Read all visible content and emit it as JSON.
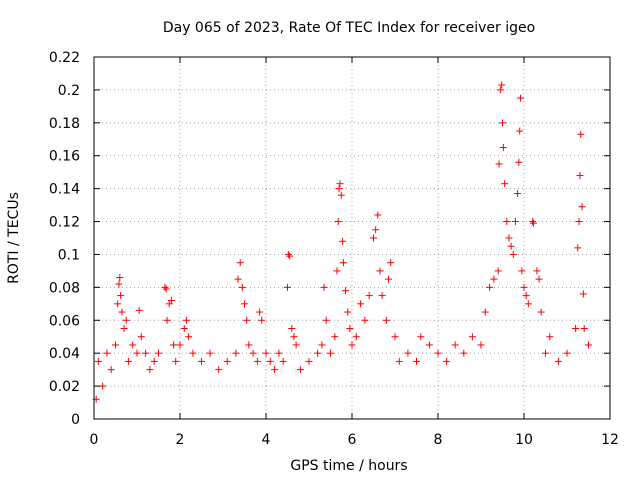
{
  "chart_data": {
    "type": "scatter",
    "title": "Day 065 of 2023, Rate Of TEC Index for receiver igeo",
    "xlabel": "GPS time / hours",
    "ylabel": "ROTI / TECUs",
    "xlim": [
      0,
      12
    ],
    "ylim": [
      0,
      0.22
    ],
    "x_ticks": [
      0,
      2,
      4,
      6,
      8,
      10,
      12
    ],
    "x_tick_labels": [
      "0",
      "2",
      "4",
      "6",
      "8",
      "10",
      "12"
    ],
    "y_ticks": [
      0,
      0.02,
      0.04,
      0.06,
      0.08,
      0.1,
      0.12,
      0.14,
      0.16,
      0.18,
      0.2,
      0.22
    ],
    "y_tick_labels": [
      "0",
      "0.02",
      "0.04",
      "0.06",
      "0.08",
      "0.1",
      "0.12",
      "0.14",
      "0.16",
      "0.18",
      "0.2",
      "0.22"
    ],
    "grid": true,
    "marker": "+",
    "series_color": "#ff0000",
    "series": [
      {
        "name": "ROTI",
        "points": [
          [
            0.05,
            0.012
          ],
          [
            0.1,
            0.035
          ],
          [
            0.2,
            0.02
          ],
          [
            0.3,
            0.04
          ],
          [
            0.4,
            0.03
          ],
          [
            0.5,
            0.045
          ],
          [
            0.55,
            0.07
          ],
          [
            0.58,
            0.082
          ],
          [
            0.6,
            0.086
          ],
          [
            0.62,
            0.075
          ],
          [
            0.65,
            0.065
          ],
          [
            0.7,
            0.055
          ],
          [
            0.75,
            0.06
          ],
          [
            0.8,
            0.035
          ],
          [
            0.9,
            0.045
          ],
          [
            1.0,
            0.04
          ],
          [
            1.05,
            0.066
          ],
          [
            1.1,
            0.05
          ],
          [
            1.2,
            0.04
          ],
          [
            1.3,
            0.03
          ],
          [
            1.4,
            0.035
          ],
          [
            1.5,
            0.04
          ],
          [
            1.65,
            0.08
          ],
          [
            1.68,
            0.079
          ],
          [
            1.7,
            0.06
          ],
          [
            1.75,
            0.07
          ],
          [
            1.8,
            0.072
          ],
          [
            1.85,
            0.045
          ],
          [
            1.9,
            0.035
          ],
          [
            2.0,
            0.045
          ],
          [
            2.1,
            0.055
          ],
          [
            2.15,
            0.06
          ],
          [
            2.2,
            0.05
          ],
          [
            2.3,
            0.04
          ],
          [
            2.5,
            0.035
          ],
          [
            2.7,
            0.04
          ],
          [
            2.9,
            0.03
          ],
          [
            3.1,
            0.035
          ],
          [
            3.3,
            0.04
          ],
          [
            3.35,
            0.085
          ],
          [
            3.4,
            0.095
          ],
          [
            3.45,
            0.08
          ],
          [
            3.5,
            0.07
          ],
          [
            3.55,
            0.06
          ],
          [
            3.6,
            0.045
          ],
          [
            3.7,
            0.04
          ],
          [
            3.8,
            0.035
          ],
          [
            3.85,
            0.065
          ],
          [
            3.9,
            0.06
          ],
          [
            4.0,
            0.04
          ],
          [
            4.1,
            0.035
          ],
          [
            4.2,
            0.03
          ],
          [
            4.3,
            0.04
          ],
          [
            4.4,
            0.035
          ],
          [
            4.5,
            0.08
          ],
          [
            4.52,
            0.1
          ],
          [
            4.55,
            0.099
          ],
          [
            4.6,
            0.055
          ],
          [
            4.65,
            0.05
          ],
          [
            4.7,
            0.045
          ],
          [
            4.8,
            0.03
          ],
          [
            5.0,
            0.035
          ],
          [
            5.2,
            0.04
          ],
          [
            5.3,
            0.045
          ],
          [
            5.35,
            0.08
          ],
          [
            5.4,
            0.06
          ],
          [
            5.5,
            0.04
          ],
          [
            5.6,
            0.05
          ],
          [
            5.65,
            0.09
          ],
          [
            5.68,
            0.12
          ],
          [
            5.7,
            0.14
          ],
          [
            5.72,
            0.143
          ],
          [
            5.75,
            0.136
          ],
          [
            5.78,
            0.108
          ],
          [
            5.8,
            0.095
          ],
          [
            5.85,
            0.078
          ],
          [
            5.9,
            0.065
          ],
          [
            5.95,
            0.055
          ],
          [
            6.0,
            0.045
          ],
          [
            6.1,
            0.05
          ],
          [
            6.2,
            0.07
          ],
          [
            6.3,
            0.06
          ],
          [
            6.4,
            0.075
          ],
          [
            6.5,
            0.11
          ],
          [
            6.55,
            0.115
          ],
          [
            6.6,
            0.124
          ],
          [
            6.65,
            0.09
          ],
          [
            6.7,
            0.075
          ],
          [
            6.8,
            0.06
          ],
          [
            6.85,
            0.085
          ],
          [
            6.9,
            0.095
          ],
          [
            7.0,
            0.05
          ],
          [
            7.1,
            0.035
          ],
          [
            7.3,
            0.04
          ],
          [
            7.5,
            0.035
          ],
          [
            7.6,
            0.05
          ],
          [
            7.8,
            0.045
          ],
          [
            8.0,
            0.04
          ],
          [
            8.2,
            0.035
          ],
          [
            8.4,
            0.045
          ],
          [
            8.6,
            0.04
          ],
          [
            8.8,
            0.05
          ],
          [
            9.0,
            0.045
          ],
          [
            9.1,
            0.065
          ],
          [
            9.2,
            0.08
          ],
          [
            9.3,
            0.085
          ],
          [
            9.4,
            0.09
          ],
          [
            9.42,
            0.155
          ],
          [
            9.45,
            0.2
          ],
          [
            9.48,
            0.203
          ],
          [
            9.5,
            0.18
          ],
          [
            9.52,
            0.165
          ],
          [
            9.55,
            0.143
          ],
          [
            9.6,
            0.12
          ],
          [
            9.65,
            0.11
          ],
          [
            9.7,
            0.105
          ],
          [
            9.75,
            0.1
          ],
          [
            9.8,
            0.12
          ],
          [
            9.85,
            0.137
          ],
          [
            9.88,
            0.156
          ],
          [
            9.9,
            0.175
          ],
          [
            9.92,
            0.195
          ],
          [
            9.95,
            0.09
          ],
          [
            10.0,
            0.08
          ],
          [
            10.05,
            0.075
          ],
          [
            10.1,
            0.07
          ],
          [
            10.2,
            0.12
          ],
          [
            10.22,
            0.119
          ],
          [
            10.3,
            0.09
          ],
          [
            10.35,
            0.085
          ],
          [
            10.4,
            0.065
          ],
          [
            10.5,
            0.04
          ],
          [
            10.6,
            0.05
          ],
          [
            10.8,
            0.035
          ],
          [
            11.0,
            0.04
          ],
          [
            11.2,
            0.055
          ],
          [
            11.25,
            0.104
          ],
          [
            11.28,
            0.12
          ],
          [
            11.3,
            0.148
          ],
          [
            11.32,
            0.173
          ],
          [
            11.35,
            0.129
          ],
          [
            11.38,
            0.076
          ],
          [
            11.4,
            0.055
          ],
          [
            11.5,
            0.045
          ]
        ]
      }
    ]
  }
}
